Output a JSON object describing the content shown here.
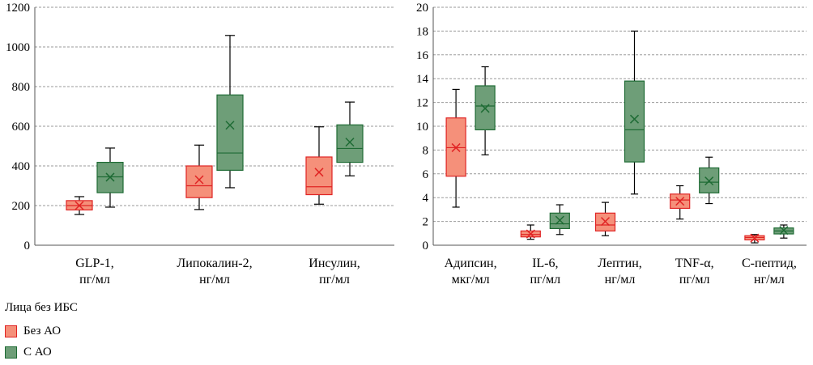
{
  "colors": {
    "no_ao_fill": "#F5907A",
    "no_ao_stroke": "#E02424",
    "ao_fill": "#6E9E78",
    "ao_stroke": "#1E6B34",
    "grid": "#9a9a9a",
    "axis": "#555555"
  },
  "legend": {
    "title": "Лица без ИБС",
    "items": [
      {
        "label": "Без АО",
        "color": "#F5907A",
        "border": "#E02424"
      },
      {
        "label": "С АО",
        "color": "#6E9E78",
        "border": "#1E6B34"
      }
    ]
  },
  "chart_data": [
    {
      "type": "box",
      "ylim": [
        0,
        1200
      ],
      "yticks": [
        "0",
        "200",
        "400",
        "600",
        "800",
        "1000",
        "1200"
      ],
      "grid": true,
      "categories": [
        {
          "label": [
            "GLP-1,",
            "пг/мл"
          ]
        },
        {
          "label": [
            "Липокалин-2,",
            "нг/мл"
          ]
        },
        {
          "label": [
            "Инсулин,",
            "пг/мл"
          ]
        }
      ],
      "series": [
        {
          "name": "Без АО",
          "boxes": [
            {
              "min": 155,
              "q1": 178,
              "median": 200,
              "q3": 225,
              "max": 245,
              "mean": 200
            },
            {
              "min": 180,
              "q1": 240,
              "median": 300,
              "q3": 400,
              "max": 505,
              "mean": 330
            },
            {
              "min": 207,
              "q1": 255,
              "median": 295,
              "q3": 445,
              "max": 597,
              "mean": 368
            }
          ]
        },
        {
          "name": "С АО",
          "boxes": [
            {
              "min": 192,
              "q1": 265,
              "median": 345,
              "q3": 418,
              "max": 490,
              "mean": 343
            },
            {
              "min": 290,
              "q1": 378,
              "median": 465,
              "q3": 758,
              "max": 1058,
              "mean": 605
            },
            {
              "min": 350,
              "q1": 418,
              "median": 488,
              "q3": 607,
              "max": 722,
              "mean": 520
            }
          ]
        }
      ]
    },
    {
      "type": "box",
      "ylim": [
        0,
        20
      ],
      "yticks": [
        "0",
        "2",
        "4",
        "6",
        "8",
        "10",
        "12",
        "14",
        "16",
        "18",
        "20"
      ],
      "grid": true,
      "categories": [
        {
          "label": [
            "Адипсин,",
            "мкг/мл"
          ]
        },
        {
          "label": [
            "IL-6,",
            "пг/мл"
          ]
        },
        {
          "label": [
            "Лептин,",
            "нг/мл"
          ]
        },
        {
          "label": [
            "TNF-α,",
            "пг/мл"
          ]
        },
        {
          "label": [
            "С-пептид,",
            "нг/мл"
          ]
        }
      ],
      "series": [
        {
          "name": "Без АО",
          "boxes": [
            {
              "min": 3.2,
              "q1": 5.8,
              "median": 8.2,
              "q3": 10.7,
              "max": 13.1,
              "mean": 8.2
            },
            {
              "min": 0.5,
              "q1": 0.7,
              "median": 0.9,
              "q3": 1.2,
              "max": 1.7,
              "mean": 0.95
            },
            {
              "min": 0.8,
              "q1": 1.2,
              "median": 1.7,
              "q3": 2.7,
              "max": 3.6,
              "mean": 2.0
            },
            {
              "min": 2.2,
              "q1": 3.1,
              "median": 3.8,
              "q3": 4.3,
              "max": 5.0,
              "mean": 3.7
            },
            {
              "min": 0.2,
              "q1": 0.45,
              "median": 0.65,
              "q3": 0.8,
              "max": 0.9,
              "mean": 0.6
            }
          ]
        },
        {
          "name": "С АО",
          "boxes": [
            {
              "min": 7.6,
              "q1": 9.7,
              "median": 11.7,
              "q3": 13.4,
              "max": 15.0,
              "mean": 11.5
            },
            {
              "min": 0.9,
              "q1": 1.4,
              "median": 1.8,
              "q3": 2.7,
              "max": 3.4,
              "mean": 2.1
            },
            {
              "min": 4.3,
              "q1": 7.0,
              "median": 9.7,
              "q3": 13.8,
              "max": 18.0,
              "mean": 10.6
            },
            {
              "min": 3.5,
              "q1": 4.4,
              "median": 5.3,
              "q3": 6.5,
              "max": 7.4,
              "mean": 5.4
            },
            {
              "min": 0.6,
              "q1": 0.95,
              "median": 1.2,
              "q3": 1.45,
              "max": 1.7,
              "mean": 1.25
            }
          ]
        }
      ]
    }
  ]
}
